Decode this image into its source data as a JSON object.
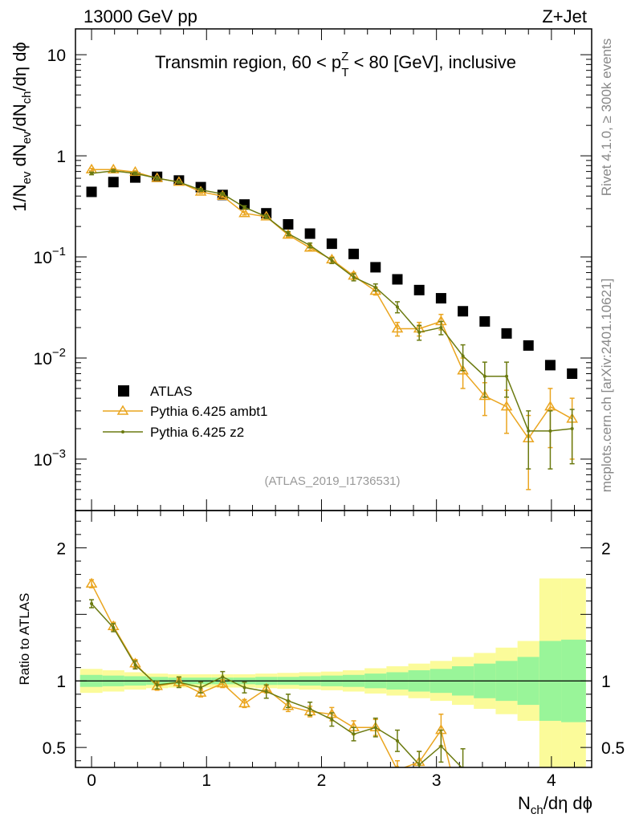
{
  "header": {
    "left": "13000 GeV pp",
    "right": "Z+Jet"
  },
  "side": {
    "rivet": "Rivet 4.1.0, ≥ 300k events",
    "mcplots": "mcplots.cern.ch [arXiv:2401.10621]"
  },
  "chart_data": [
    {
      "panel": "main",
      "type": "scatter",
      "title": "Transmin region, 60 < pTZ < 80 [GeV], inclusive",
      "title_parts": {
        "pre": "Transmin region, 60 < p",
        "sup": "Z",
        "sub": "T",
        "post": " < 80 [GeV], inclusive"
      },
      "ylabel": "1/Nev dNev/dNch/dη dϕ",
      "ylabel_parts": {
        "a": "1/N",
        "a_sub": "ev",
        "b": " dN",
        "b_sub": "ev",
        "c": "/dN",
        "c_sub": "ch",
        "d": "/dη dϕ"
      },
      "yscale": "log",
      "ylim": [
        0.00031,
        18
      ],
      "xlim": [
        -0.14,
        4.35
      ],
      "y_ticks": [
        {
          "value": 10,
          "label": "10",
          "exp": ""
        },
        {
          "value": 1,
          "label": "1",
          "exp": ""
        },
        {
          "value": 0.1,
          "label": "10",
          "exp": "−1"
        },
        {
          "value": 0.01,
          "label": "10",
          "exp": "−2"
        },
        {
          "value": 0.001,
          "label": "10",
          "exp": "−3"
        }
      ],
      "watermark": "(ATLAS_2019_I1736531)",
      "legend": {
        "position": "lower-left",
        "entries": [
          "ATLAS",
          "Pythia 6.425 ambt1",
          "Pythia 6.425 z2"
        ]
      },
      "series": [
        {
          "name": "ATLAS",
          "color": "#000000",
          "marker": "square",
          "x": [
            0.0,
            0.19,
            0.38,
            0.57,
            0.76,
            0.95,
            1.14,
            1.33,
            1.52,
            1.71,
            1.9,
            2.09,
            2.28,
            2.47,
            2.66,
            2.85,
            3.04,
            3.23,
            3.42,
            3.61,
            3.8,
            3.99,
            4.18
          ],
          "y": [
            0.44,
            0.55,
            0.61,
            0.62,
            0.57,
            0.49,
            0.41,
            0.33,
            0.27,
            0.21,
            0.17,
            0.135,
            0.107,
            0.079,
            0.06,
            0.047,
            0.039,
            0.029,
            0.023,
            0.0175,
            0.0133,
            0.0085,
            0.007
          ]
        },
        {
          "name": "Pythia 6.425 ambt1",
          "color": "#eaa51f",
          "marker": "triangle",
          "x": [
            0.0,
            0.19,
            0.38,
            0.57,
            0.76,
            0.95,
            1.14,
            1.33,
            1.52,
            1.71,
            1.9,
            2.09,
            2.28,
            2.47,
            2.66,
            2.85,
            3.04,
            3.23,
            3.42,
            3.61,
            3.8,
            3.99,
            4.18
          ],
          "y": [
            0.73,
            0.73,
            0.69,
            0.6,
            0.55,
            0.44,
            0.4,
            0.27,
            0.25,
            0.165,
            0.123,
            0.094,
            0.065,
            0.046,
            0.0195,
            0.0195,
            0.023,
            0.0075,
            0.0042,
            0.0033,
            0.0016,
            0.0033,
            0.0025
          ],
          "err_lo": [
            0.02,
            0.02,
            0.02,
            0.02,
            0.015,
            0.015,
            0.012,
            0.01,
            0.01,
            0.008,
            0.007,
            0.006,
            0.005,
            0.004,
            0.003,
            0.003,
            0.004,
            0.0025,
            0.0015,
            0.0015,
            0.0011,
            0.002,
            0.0015
          ],
          "err_hi": [
            0.02,
            0.02,
            0.02,
            0.02,
            0.015,
            0.015,
            0.012,
            0.01,
            0.01,
            0.008,
            0.007,
            0.006,
            0.005,
            0.004,
            0.003,
            0.003,
            0.004,
            0.0025,
            0.0015,
            0.0015,
            0.0011,
            0.0017,
            0.0015
          ]
        },
        {
          "name": "Pythia 6.425 z2",
          "color": "#6b7a10",
          "marker": "dot",
          "x": [
            0.0,
            0.19,
            0.38,
            0.57,
            0.76,
            0.95,
            1.14,
            1.33,
            1.52,
            1.71,
            1.9,
            2.09,
            2.28,
            2.47,
            2.66,
            2.85,
            3.04,
            3.23,
            3.42,
            3.61,
            3.8,
            3.99,
            4.18
          ],
          "y": [
            0.67,
            0.71,
            0.67,
            0.6,
            0.55,
            0.46,
            0.42,
            0.31,
            0.25,
            0.17,
            0.13,
            0.092,
            0.063,
            0.05,
            0.032,
            0.018,
            0.02,
            0.0105,
            0.0066,
            0.0066,
            0.0019,
            0.0019,
            0.002
          ],
          "err_lo": [
            0.02,
            0.02,
            0.02,
            0.02,
            0.015,
            0.015,
            0.012,
            0.01,
            0.01,
            0.008,
            0.007,
            0.006,
            0.005,
            0.004,
            0.004,
            0.003,
            0.003,
            0.003,
            0.0025,
            0.0025,
            0.0011,
            0.0011,
            0.0011
          ],
          "err_hi": [
            0.02,
            0.02,
            0.02,
            0.02,
            0.015,
            0.015,
            0.012,
            0.01,
            0.01,
            0.008,
            0.007,
            0.006,
            0.005,
            0.004,
            0.004,
            0.003,
            0.003,
            0.003,
            0.0025,
            0.0025,
            0.0011,
            0.0011,
            0.0011
          ]
        }
      ]
    },
    {
      "panel": "ratio",
      "type": "scatter",
      "ylabel": "Ratio to ATLAS",
      "xlabel": "Nch/dη dϕ",
      "xlabel_parts": {
        "a": "N",
        "a_sub": "ch",
        "b": "/dη dϕ"
      },
      "ylim": [
        0.35,
        2.28
      ],
      "xlim": [
        -0.14,
        4.35
      ],
      "y_ticks": [
        {
          "value": 2,
          "label": "2"
        },
        {
          "value": 1,
          "label": "1"
        },
        {
          "value": 0.5,
          "label": "0.5"
        }
      ],
      "x_ticks": [
        {
          "value": 0,
          "label": "0"
        },
        {
          "value": 1,
          "label": "1"
        },
        {
          "value": 2,
          "label": "2"
        },
        {
          "value": 3,
          "label": "3"
        },
        {
          "value": 4,
          "label": "4"
        }
      ],
      "bands": {
        "edges": [
          -0.1,
          0.095,
          0.285,
          0.475,
          0.665,
          0.855,
          1.045,
          1.235,
          1.425,
          1.615,
          1.805,
          1.995,
          2.185,
          2.375,
          2.565,
          2.755,
          2.945,
          3.135,
          3.325,
          3.515,
          3.705,
          3.895,
          4.085,
          4.3
        ],
        "yellow_lo": [
          0.91,
          0.92,
          0.935,
          0.945,
          0.95,
          0.95,
          0.95,
          0.95,
          0.945,
          0.94,
          0.935,
          0.93,
          0.92,
          0.905,
          0.89,
          0.87,
          0.85,
          0.82,
          0.79,
          0.75,
          0.7,
          0.35,
          0.35
        ],
        "yellow_hi": [
          1.09,
          1.08,
          1.065,
          1.055,
          1.05,
          1.05,
          1.05,
          1.05,
          1.055,
          1.06,
          1.065,
          1.07,
          1.08,
          1.095,
          1.11,
          1.13,
          1.15,
          1.18,
          1.21,
          1.25,
          1.3,
          1.77,
          1.77
        ],
        "green_lo": [
          0.955,
          0.96,
          0.965,
          0.97,
          0.975,
          0.975,
          0.975,
          0.975,
          0.97,
          0.97,
          0.965,
          0.96,
          0.955,
          0.945,
          0.935,
          0.92,
          0.91,
          0.89,
          0.87,
          0.85,
          0.82,
          0.7,
          0.69
        ],
        "green_hi": [
          1.045,
          1.04,
          1.035,
          1.03,
          1.025,
          1.025,
          1.025,
          1.025,
          1.03,
          1.03,
          1.035,
          1.04,
          1.045,
          1.055,
          1.065,
          1.08,
          1.09,
          1.11,
          1.13,
          1.15,
          1.18,
          1.3,
          1.31
        ]
      },
      "series": [
        {
          "name": "Pythia 6.425 ambt1",
          "color": "#eaa51f",
          "marker": "triangle",
          "x": [
            0.0,
            0.19,
            0.38,
            0.57,
            0.76,
            0.95,
            1.14,
            1.33,
            1.52,
            1.71,
            1.9,
            2.09,
            2.28,
            2.47,
            2.66,
            2.85,
            3.04
          ],
          "y": [
            1.73,
            1.41,
            1.13,
            0.96,
            0.99,
            0.91,
            0.98,
            0.83,
            0.94,
            0.81,
            0.77,
            0.75,
            0.65,
            0.65,
            0.33,
            0.39,
            0.63
          ],
          "err": [
            0.03,
            0.03,
            0.03,
            0.03,
            0.03,
            0.03,
            0.03,
            0.03,
            0.03,
            0.04,
            0.04,
            0.05,
            0.05,
            0.06,
            0.07,
            0.08,
            0.12
          ]
        },
        {
          "name": "Pythia 6.425 z2",
          "color": "#6b7a10",
          "marker": "dot",
          "x": [
            0.0,
            0.19,
            0.38,
            0.57,
            0.76,
            0.95,
            1.14,
            1.33,
            1.52,
            1.71,
            1.9,
            2.09,
            2.28,
            2.47,
            2.66,
            2.85,
            3.04,
            3.23
          ],
          "y": [
            1.58,
            1.4,
            1.12,
            0.97,
            0.99,
            0.95,
            1.03,
            0.95,
            0.92,
            0.85,
            0.79,
            0.71,
            0.6,
            0.65,
            0.55,
            0.37,
            0.51,
            0.34
          ],
          "err": [
            0.03,
            0.03,
            0.03,
            0.03,
            0.04,
            0.04,
            0.04,
            0.04,
            0.05,
            0.05,
            0.05,
            0.05,
            0.05,
            0.07,
            0.08,
            0.1,
            0.12,
            0.15
          ]
        }
      ]
    }
  ]
}
